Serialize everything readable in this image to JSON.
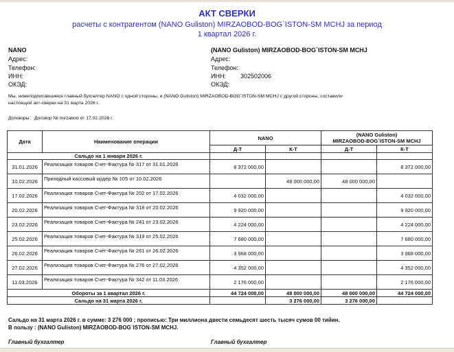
{
  "header": {
    "title": "АКТ СВЕРКИ",
    "subtitle": "расчеты с контрагентом (NANO Guliston)  MIRZAOBOD-BOG`ISTON-SM  MCHJ за период",
    "period": "1 квартал 2026 г."
  },
  "party_left": {
    "name": "NANO",
    "address_label": "Адрес:",
    "phone_label": "Телефон:",
    "inn_label": "ИНН:",
    "inn": "",
    "okzd_label": "ОКЭД:"
  },
  "party_right": {
    "name": "(NANO Guliston)  MIRZAOBOD-BOG`ISTON-SM  MCHJ",
    "address_label": "Адрес:",
    "phone_label": "Телефон:",
    "inn_label": "ИНН:",
    "inn": "302502006",
    "okzd_label": "ОКЭД:"
  },
  "intro": {
    "line1": "Мы, нижеподписавшиеся главный бухгалтер  NANO с одной стороны, и  (NANO Guliston)  MIRZAOBOD-BOG`ISTON-SM  MCHJ  с другой стороны, составили",
    "line2": "настоящий акт-сверки на 31 марта 2026 г.."
  },
  "contracts": {
    "label": "Договоры:",
    "value": "Договор № mirzabod от 17.02.2026 г."
  },
  "table": {
    "col_date": "Дата",
    "col_name": "Наименование  операции",
    "col_left": "NANO",
    "col_right_1": "(NANO Guliston)",
    "col_right_2": "MIRZAOBOD-BOG`ISTON-SM  MCHJ",
    "dt": "Д-Т",
    "kt": "К-Т",
    "opening": "Сальдо на  1 января 2026 г.",
    "rows": [
      {
        "date": "31.01.2026",
        "name": "Реализация товаров Счет-Фактура № 317 от 31.01.2026",
        "l_dt": "8 372 000,00",
        "l_kt": "",
        "r_dt": "",
        "r_kt": "8 372 000,00"
      },
      {
        "date": "10.02.2026",
        "name": "Приходный кассовый ордер № 105 от 10.02.2026",
        "l_dt": "",
        "l_kt": "48 000 000,00",
        "r_dt": "48 000 000,00",
        "r_kt": ""
      },
      {
        "date": "17.02.2026",
        "name": "Реализация товаров Счет-Фактура № 202 от 17.02.2026",
        "l_dt": "4 032 000,00",
        "l_kt": "",
        "r_dt": "",
        "r_kt": "4 032 000,00"
      },
      {
        "date": "20.02.2026",
        "name": "Реализация товаров Счет-Фактура № 318 от 20.02.2026",
        "l_dt": "9 920 000,00",
        "l_kt": "",
        "r_dt": "",
        "r_kt": "9 920 000,00"
      },
      {
        "date": "23.02.2026",
        "name": "Реализация товаров Счет-Фактура № 241 от 23.02.2026",
        "l_dt": "4 224 000,00",
        "l_kt": "",
        "r_dt": "",
        "r_kt": "4 224 000,00"
      },
      {
        "date": "25.02.2026",
        "name": "Реализация товаров Счет-Фактура № 319 от 25.02.2026",
        "l_dt": "7 680 000,00",
        "l_kt": "",
        "r_dt": "",
        "r_kt": "7 680 000,00"
      },
      {
        "date": "26.02.2026",
        "name": "Реализация товаров Счет-Фактура № 261 от 26.02.2026",
        "l_dt": "3 968 000,00",
        "l_kt": "",
        "r_dt": "",
        "r_kt": "3 968 000,00"
      },
      {
        "date": "27.02.2026",
        "name": "Реализация товаров Счет-Фактура № 276 от 27.02.2026",
        "l_dt": "4 352 000,00",
        "l_kt": "",
        "r_dt": "",
        "r_kt": "4 352 000,00"
      },
      {
        "date": "11.03.2026",
        "name": "Реализация товаров Счет-Фактура № 342 от 11.03.2026",
        "l_dt": "2 176 000,00",
        "l_kt": "",
        "r_dt": "",
        "r_kt": "2 176 000,00"
      }
    ],
    "turnover": {
      "label": "Обороты за 1 квартал 2026 г.",
      "l_dt": "44 724 000,00",
      "l_kt": "48 000 000,00",
      "r_dt": "48 000 000,00",
      "r_kt": "44 724 000,00"
    },
    "closing": {
      "label": "Сальдо на  31 марта 2026 г.",
      "l_dt": "",
      "l_kt": "3 276 000,00",
      "r_dt": "3 276 000,00",
      "r_kt": ""
    }
  },
  "summary": {
    "line1": "Сальдо на 31 марта 2026 г.   в сумме: 3 276 000 ; прописью: Три миллиона двести семьдесят шесть тысяч сумов 00 тийин.",
    "line2": "В пользу : (NANO Guliston)  MIRZAOBOD-BOG`ISTON-SM  MCHJ."
  },
  "signatures": {
    "left": "Главный бухгалтер",
    "right": "Главный бухгалтер"
  }
}
